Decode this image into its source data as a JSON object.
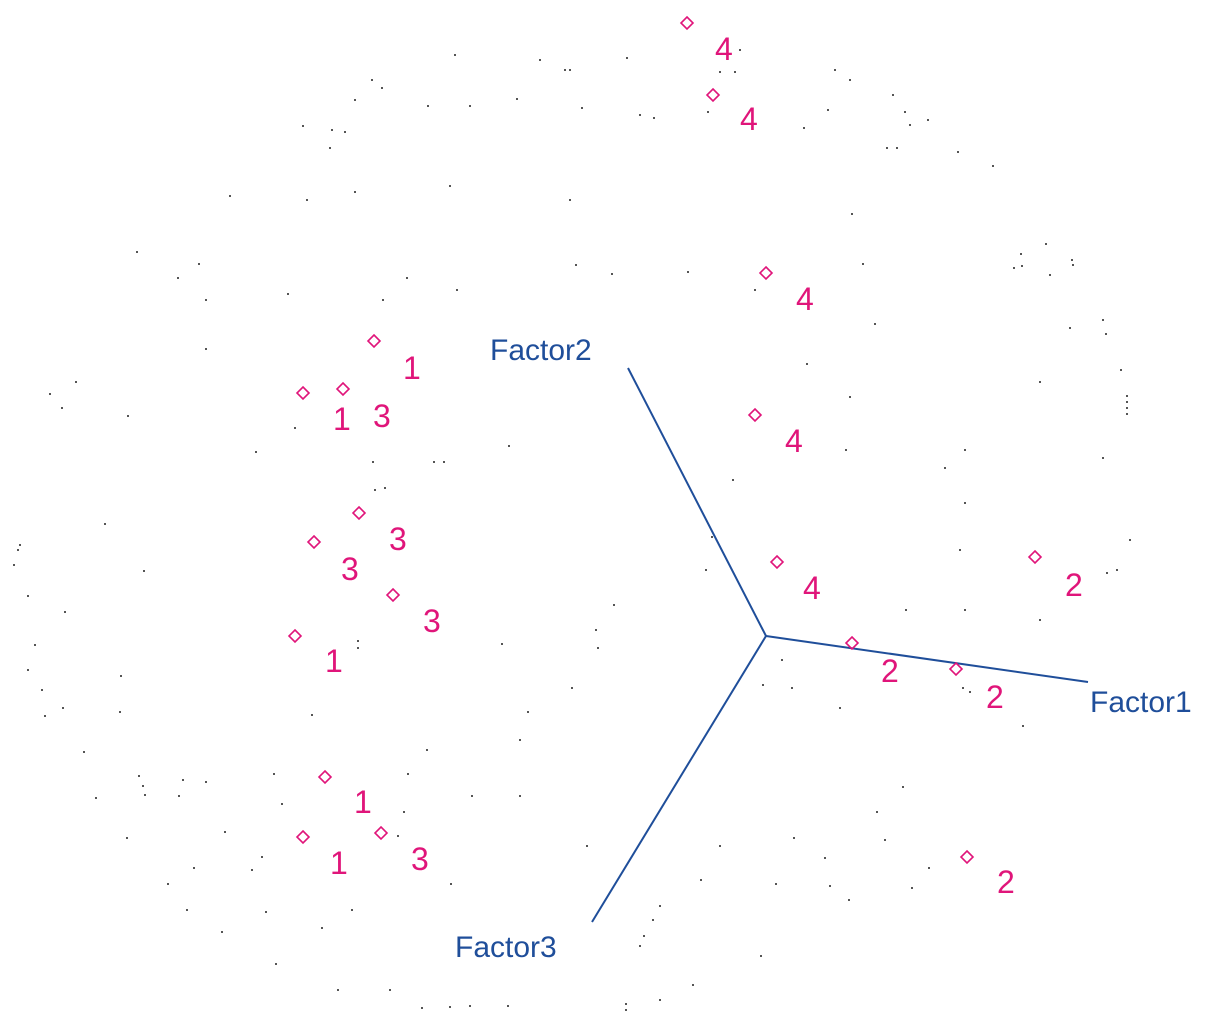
{
  "axes": [
    {
      "label": "Factor1"
    },
    {
      "label": "Factor2"
    },
    {
      "label": "Factor3"
    }
  ],
  "points": [
    {
      "label": "4"
    },
    {
      "label": "4"
    },
    {
      "label": "4"
    },
    {
      "label": "1"
    },
    {
      "label": "1"
    },
    {
      "label": "3"
    },
    {
      "label": "4"
    },
    {
      "label": "3"
    },
    {
      "label": "3"
    },
    {
      "label": "4"
    },
    {
      "label": "2"
    },
    {
      "label": "3"
    },
    {
      "label": "1"
    },
    {
      "label": "2"
    },
    {
      "label": "2"
    },
    {
      "label": "1"
    },
    {
      "label": "1"
    },
    {
      "label": "3"
    },
    {
      "label": "2"
    }
  ]
}
